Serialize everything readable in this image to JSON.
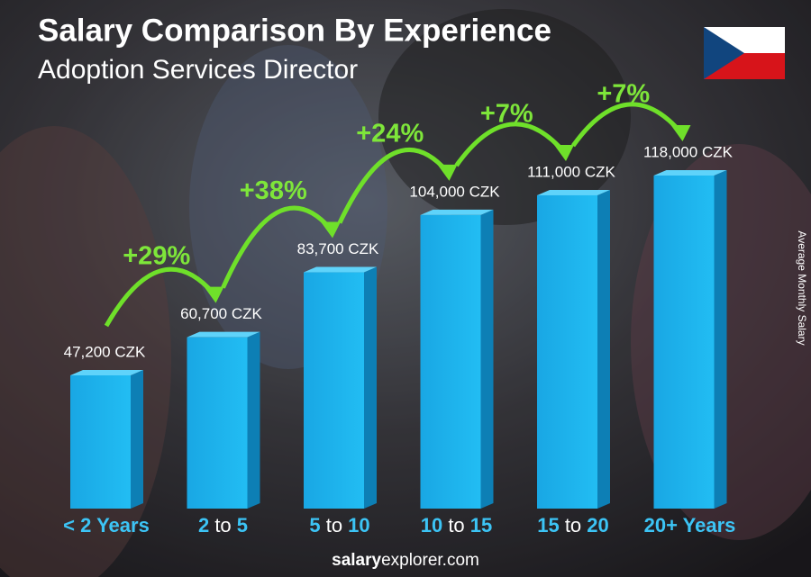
{
  "chart_data": {
    "type": "bar",
    "title": "Salary Comparison By Experience",
    "subtitle": "Adoption Services Director",
    "y_axis_label": "Average Monthly Salary",
    "categories": [
      "< 2 Years",
      "2 to 5",
      "5 to 10",
      "10 to 15",
      "15 to 20",
      "20+ Years"
    ],
    "values": [
      47200,
      60700,
      83700,
      104000,
      111000,
      118000
    ],
    "value_labels": [
      "47,200 CZK",
      "60,700 CZK",
      "83,700 CZK",
      "104,000 CZK",
      "111,000 CZK",
      "118,000 CZK"
    ],
    "changes": [
      "+29%",
      "+38%",
      "+24%",
      "+7%",
      "+7%"
    ],
    "color": "#1ab0ea",
    "footer": {
      "bold": "salary",
      "rest": "explorer.com"
    }
  }
}
